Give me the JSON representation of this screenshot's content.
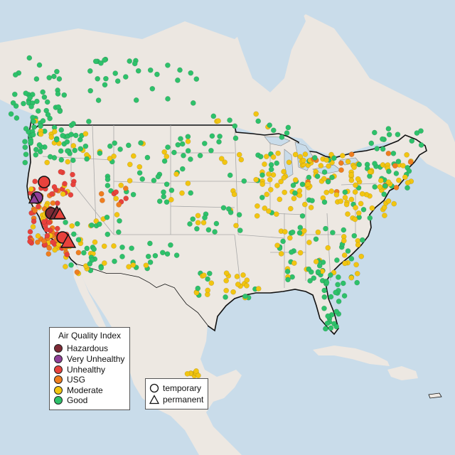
{
  "legend": {
    "title": "Air Quality Index",
    "levels": [
      {
        "label": "Hazardous",
        "color": "#7e2a35"
      },
      {
        "label": "Very Unhealthy",
        "color": "#8f3f97"
      },
      {
        "label": "Unhealthy",
        "color": "#e8423c"
      },
      {
        "label": "USG",
        "color": "#ef7e1f"
      },
      {
        "label": "Moderate",
        "color": "#f2c511"
      },
      {
        "label": "Good",
        "color": "#2ec16a"
      }
    ]
  },
  "monitor_types": [
    {
      "label": "temporary",
      "shape": "circle"
    },
    {
      "label": "permanent",
      "shape": "triangle"
    }
  ],
  "colors": {
    "water": "#c9dcea",
    "land": "#ede8e2",
    "state_border": "#a9a9a9",
    "country_border": "#111111"
  }
}
